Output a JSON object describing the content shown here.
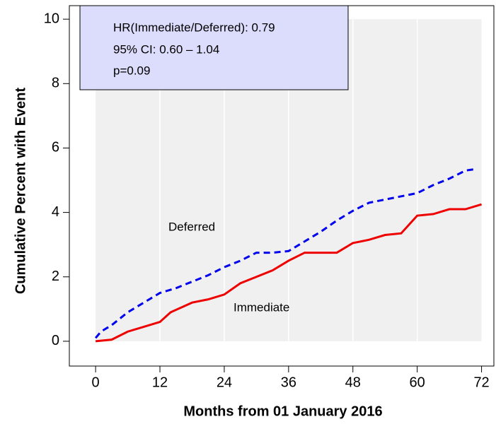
{
  "chart_data": {
    "type": "line",
    "x_label": "Months from 01 January 2016",
    "y_label": "Cumulative Percent with Event",
    "xlim": [
      -4.9,
      74.3
    ],
    "ylim": [
      -0.77,
      10.42
    ],
    "xticks": [
      0,
      12,
      24,
      36,
      48,
      60,
      72
    ],
    "yticks": [
      0,
      2,
      4,
      6,
      8,
      10
    ],
    "grid": true,
    "annotations": [
      "HR(Immediate/Deferred): 0.79",
      "95% CI: 0.60 – 1.04",
      "p=0.09",
      "Deferred",
      "Immediate"
    ],
    "series": [
      {
        "name": "Immediate",
        "color": "#ee0000",
        "dash": false,
        "x": [
          0,
          3,
          6,
          9,
          12,
          14,
          18,
          21,
          24,
          27,
          30,
          33,
          36,
          39,
          42,
          45,
          48,
          51,
          54,
          57,
          60,
          63,
          66,
          69,
          72
        ],
        "values": [
          0,
          0.05,
          0.3,
          0.45,
          0.6,
          0.9,
          1.2,
          1.3,
          1.45,
          1.8,
          2.0,
          2.2,
          2.5,
          2.75,
          2.75,
          2.75,
          3.05,
          3.15,
          3.3,
          3.35,
          3.9,
          3.95,
          4.1,
          4.1,
          4.25
        ]
      },
      {
        "name": "Deferred",
        "color": "#0000ee",
        "dash": true,
        "x": [
          0,
          1,
          3,
          6,
          9,
          12,
          15,
          18,
          21,
          24,
          27,
          30,
          33,
          36,
          39,
          42,
          45,
          48,
          51,
          54,
          57,
          60,
          63,
          66,
          69,
          71
        ],
        "values": [
          0.1,
          0.3,
          0.5,
          0.9,
          1.2,
          1.5,
          1.65,
          1.85,
          2.05,
          2.3,
          2.5,
          2.75,
          2.75,
          2.8,
          3.1,
          3.4,
          3.75,
          4.05,
          4.3,
          4.4,
          4.5,
          4.6,
          4.85,
          5.05,
          5.3,
          5.35
        ]
      }
    ]
  }
}
